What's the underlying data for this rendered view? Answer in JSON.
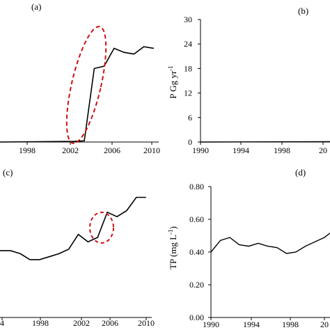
{
  "chart_data": [
    {
      "panel": "(a)",
      "type": "line",
      "x_ticks": [
        "1998",
        "2002",
        "2006",
        "2010"
      ],
      "xlim": [
        1994.5,
        2010.5
      ],
      "ylim": [
        0,
        30
      ],
      "x": [
        1994.5,
        2002,
        2003,
        2004,
        2005,
        2006,
        2007,
        2008,
        2009,
        2010
      ],
      "y": [
        0,
        0.15,
        0.3,
        18.2,
        18.8,
        23.2,
        22.2,
        21.8,
        23.6,
        23.2
      ],
      "annotation": "red dashed ellipse around 2003-2006 rise",
      "line_color": "#000000",
      "annotation_color": "#cc1111"
    },
    {
      "panel": "(b)",
      "type": "line",
      "ylabel": "P Gg yr",
      "ylabel_sup": "-1",
      "y_ticks": [
        "0",
        "6",
        "12",
        "18",
        "24",
        "30"
      ],
      "x_ticks": [
        "1990",
        "1994",
        "1998",
        "20"
      ],
      "xlim": [
        1990,
        2002.6
      ],
      "ylim": [
        0,
        30
      ],
      "x": [
        1990,
        2002.6
      ],
      "y": [
        0,
        0.1
      ],
      "line_color": "#000000"
    },
    {
      "panel": "(c)",
      "type": "line",
      "x_ticks": [
        "4",
        "1998",
        "2002",
        "2006",
        "2010"
      ],
      "xlim": [
        1994.9,
        2010.6
      ],
      "x": [
        1994.9,
        1996,
        1997,
        1998,
        1999,
        2000,
        2001,
        2002,
        2003,
        2004,
        2005,
        2006,
        2007,
        2008,
        2009,
        2010
      ],
      "y": [
        0.45,
        0.45,
        0.43,
        0.39,
        0.39,
        0.41,
        0.43,
        0.46,
        0.56,
        0.51,
        0.54,
        0.71,
        0.68,
        0.72,
        0.81,
        0.81
      ],
      "ylim": [
        0,
        1.0
      ],
      "annotation": "red dashed ellipse around 2005 rise",
      "line_color": "#000000",
      "annotation_color": "#cc1111"
    },
    {
      "panel": "(d)",
      "type": "line",
      "ylabel": "TP (mg L",
      "ylabel_sup": "-1",
      "ylabel_close": ")",
      "y_ticks": [
        "0.00",
        "0.20",
        "0.40",
        "0.60",
        "0.80"
      ],
      "x_ticks": [
        "1990",
        "1994",
        "1998",
        "20"
      ],
      "xlim": [
        1990,
        2002.6
      ],
      "ylim": [
        0,
        0.9
      ],
      "x": [
        1990,
        1991,
        1992,
        1993,
        1994,
        1995,
        1996,
        1997,
        1998,
        1999,
        2000,
        2001,
        2002,
        2002.6
      ],
      "y": [
        0.45,
        0.53,
        0.55,
        0.5,
        0.49,
        0.51,
        0.49,
        0.48,
        0.44,
        0.45,
        0.49,
        0.52,
        0.55,
        0.58
      ],
      "line_color": "#000000"
    }
  ]
}
